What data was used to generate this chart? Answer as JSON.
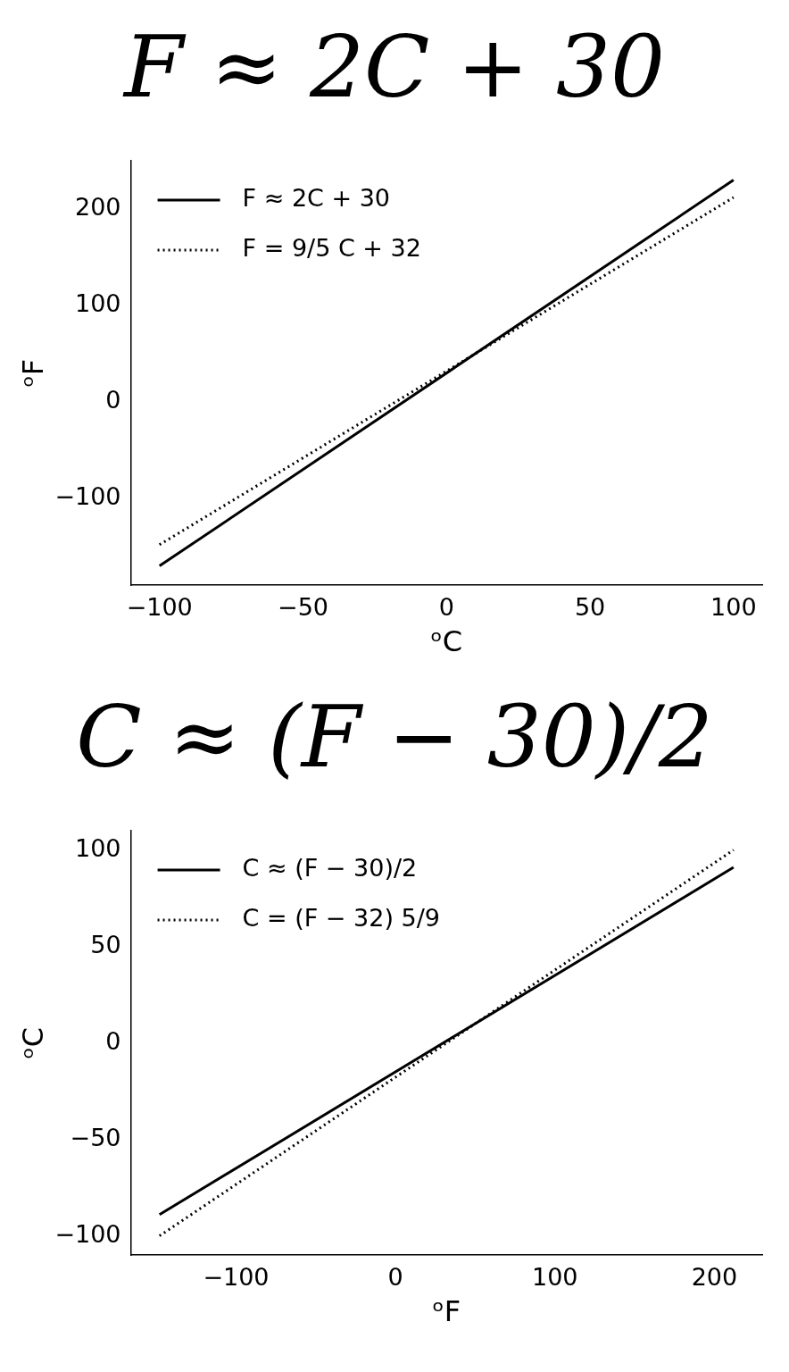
{
  "chart_data": [
    {
      "type": "line",
      "title": "F ≈ 2C + 30",
      "xlabel": "ᵒC",
      "ylabel": "ᵒF",
      "xlim": [
        -110,
        110
      ],
      "ylim": [
        -190,
        250
      ],
      "xticks": [
        -100,
        -50,
        0,
        50,
        100
      ],
      "yticks": [
        -100,
        0,
        100,
        200
      ],
      "grid": false,
      "legend": "top left",
      "marker": "none",
      "series": [
        {
          "name": "F ≈ 2C + 30",
          "color": "#000000",
          "x": [
            -100,
            100
          ],
          "values": [
            -170,
            230
          ],
          "line_style": "solid"
        },
        {
          "name": "F = 9/5 C + 32",
          "color": "#000000",
          "x": [
            -100,
            100
          ],
          "values": [
            -148,
            212
          ],
          "line_style": "dotted"
        }
      ]
    },
    {
      "type": "line",
      "title": "C ≈ (F − 30)/2",
      "xlabel": "ᵒF",
      "ylabel": "ᵒC",
      "xlim": [
        -166,
        230
      ],
      "ylim": [
        -110,
        110
      ],
      "xticks": [
        -100,
        0,
        100,
        200
      ],
      "yticks": [
        -100,
        -50,
        0,
        50,
        100
      ],
      "grid": false,
      "legend": "top left",
      "marker": "none",
      "series": [
        {
          "name": "C ≈ (F − 30)/2",
          "color": "#000000",
          "x": [
            -148,
            212
          ],
          "values": [
            -89,
            91
          ],
          "line_style": "solid"
        },
        {
          "name": "C = (F − 32) 5/9",
          "color": "#000000",
          "x": [
            -148,
            212
          ],
          "values": [
            -100,
            100
          ],
          "line_style": "dotted"
        }
      ]
    }
  ]
}
